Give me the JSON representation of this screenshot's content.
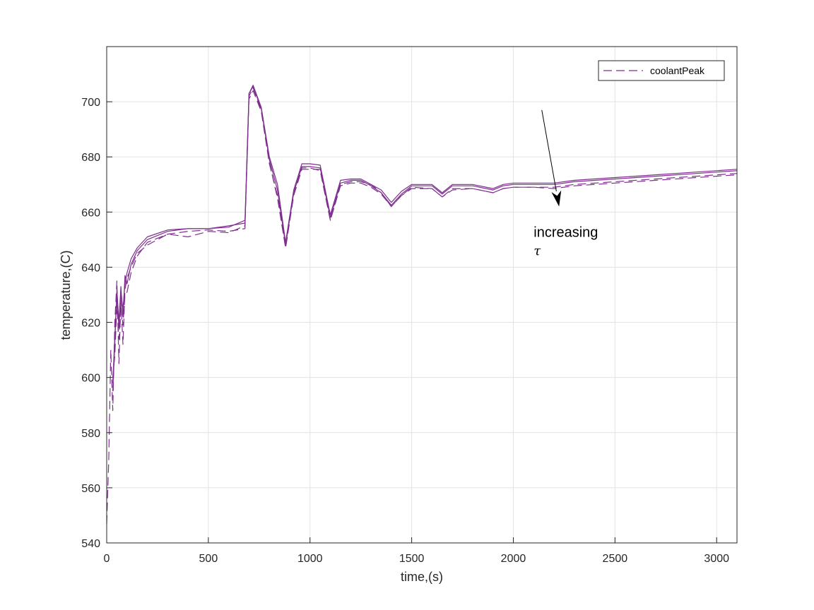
{
  "chart_data": {
    "type": "line",
    "xlabel": "time,(s)",
    "ylabel": "temperature,(C)",
    "xlim": [
      0,
      3100
    ],
    "ylim": [
      540,
      720
    ],
    "xticks": [
      0,
      500,
      1000,
      1500,
      2000,
      2500,
      3000
    ],
    "yticks": [
      540,
      560,
      580,
      600,
      620,
      640,
      660,
      680,
      700
    ],
    "grid": true,
    "legend": {
      "position": "top-right",
      "entries": [
        "coolantPeak"
      ]
    },
    "colors": {
      "series": "#7E2F8E",
      "axes": "#262626",
      "grid": "#e3e3e3"
    },
    "annotations": [
      {
        "text": "increasing",
        "x": 2100,
        "y": 651
      },
      {
        "text": "τ",
        "x": 2100,
        "y": 644.5
      }
    ],
    "arrow": {
      "from": [
        2140,
        697
      ],
      "to": [
        2225,
        662
      ]
    },
    "series": [
      {
        "name": "coolantPeak",
        "dashed": true,
        "x": [
          0,
          10,
          20,
          30,
          40,
          50,
          60,
          70,
          80,
          90,
          100,
          120,
          150,
          200,
          300,
          400,
          500,
          600,
          680,
          700,
          720,
          760,
          800,
          840,
          880,
          920,
          960,
          1000,
          1050,
          1100,
          1150,
          1200,
          1250,
          1300,
          1350,
          1400,
          1450,
          1500,
          1600,
          1650,
          1700,
          1800,
          1900,
          1950,
          2000,
          2100,
          2200,
          2300,
          2500,
          2700,
          2900,
          3100
        ],
        "y": [
          547,
          570,
          610,
          588,
          620,
          635,
          605,
          628,
          612,
          632,
          636,
          640,
          645,
          648,
          652,
          651,
          653,
          652.5,
          655,
          702,
          705,
          697,
          678,
          665,
          647,
          667,
          676,
          676,
          675,
          657,
          670,
          671,
          671,
          670,
          667,
          662,
          666,
          669,
          668.5,
          665.5,
          668,
          668.5,
          667,
          668.5,
          669,
          669,
          668.5,
          669.5,
          670.5,
          671.5,
          672.5,
          673.5
        ]
      },
      {
        "name": "",
        "dashed": false,
        "x": [
          30,
          40,
          50,
          60,
          70,
          80,
          90,
          100,
          120,
          150,
          200,
          300,
          400,
          500,
          600,
          680,
          700,
          720,
          760,
          800,
          840,
          880,
          920,
          960,
          1000,
          1050,
          1100,
          1150,
          1200,
          1250,
          1300,
          1350,
          1400,
          1450,
          1500,
          1600,
          1650,
          1700,
          1800,
          1900,
          1950,
          2000,
          2100,
          2200,
          2300,
          2500,
          2700,
          2900,
          3100
        ],
        "y": [
          595,
          612,
          632,
          620,
          633,
          622,
          637,
          634,
          641,
          646,
          650,
          653,
          654,
          654,
          655,
          656,
          703,
          706,
          698,
          680,
          670,
          649,
          668,
          677.5,
          677.5,
          677,
          659,
          671.5,
          672,
          672,
          670,
          668,
          663.5,
          667.5,
          670,
          670,
          667,
          670,
          670,
          668.5,
          670,
          670.5,
          670.5,
          670.5,
          671.5,
          672.5,
          673.5,
          674.5,
          675.5
        ]
      },
      {
        "name": "",
        "dashed": false,
        "x": [
          30,
          40,
          50,
          60,
          70,
          80,
          90,
          100,
          120,
          150,
          200,
          300,
          400,
          500,
          600,
          680,
          700,
          720,
          760,
          800,
          840,
          880,
          920,
          960,
          1000,
          1050,
          1100,
          1150,
          1200,
          1250,
          1300,
          1350,
          1400,
          1450,
          1500,
          1600,
          1650,
          1700,
          1800,
          1900,
          1950,
          2000,
          2100,
          2200,
          2300,
          2500,
          2700,
          2900,
          3100
        ],
        "y": [
          598,
          615,
          630,
          618,
          630,
          625,
          634,
          638,
          643,
          647,
          651,
          653.5,
          654,
          654,
          654.5,
          657,
          703,
          705.5,
          697.5,
          679,
          668,
          648,
          667,
          676.5,
          676.5,
          676,
          658,
          670.5,
          671.5,
          671.5,
          669.5,
          667,
          662.5,
          666.5,
          669.5,
          669.5,
          666.5,
          669.5,
          669.5,
          668,
          669.5,
          670,
          670,
          670,
          671,
          672,
          673,
          674,
          675
        ]
      },
      {
        "name": "",
        "dashed": true,
        "x": [
          30,
          40,
          50,
          60,
          70,
          80,
          90,
          100,
          120,
          150,
          200,
          300,
          400,
          500,
          600,
          680,
          700,
          720,
          760,
          800,
          840,
          880,
          920,
          960,
          1000,
          1050,
          1100,
          1150,
          1200,
          1250,
          1300,
          1350,
          1400,
          1450,
          1500,
          1600,
          1650,
          1700,
          1800,
          1900,
          1950,
          2000,
          2100,
          2200,
          2300,
          2500,
          2700,
          2900,
          3100
        ],
        "y": [
          600,
          608,
          626,
          614,
          626,
          619,
          630,
          631,
          638,
          644,
          649,
          652,
          653,
          653.5,
          653,
          654,
          701,
          704,
          696.5,
          677.5,
          666,
          647,
          666,
          675.5,
          675.5,
          675.5,
          657,
          669.5,
          670.5,
          670.5,
          669,
          666.5,
          662,
          666,
          668.5,
          668.5,
          665.5,
          668.5,
          668.5,
          667,
          668.5,
          669,
          669,
          669,
          670,
          671,
          672,
          673,
          674
        ]
      }
    ]
  }
}
